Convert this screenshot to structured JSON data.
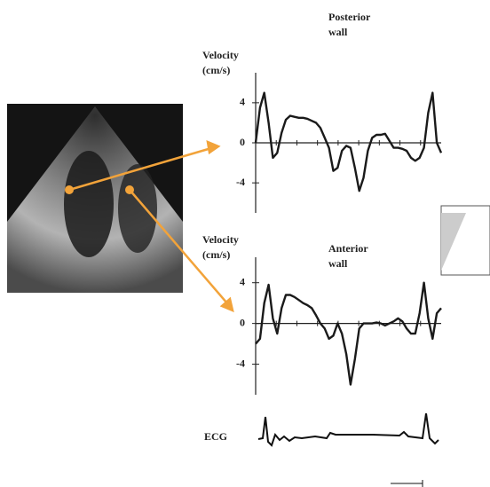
{
  "chart_data": [
    {
      "type": "line",
      "title": [
        "Posterior",
        "wall"
      ],
      "y_label": [
        "Velocity",
        "(cm/s)"
      ],
      "values": [
        0,
        3.5,
        5,
        2,
        -1.5,
        -1,
        1,
        2.3,
        2.7,
        2.6,
        2.5,
        2.5,
        2.4,
        2.2,
        2,
        1.5,
        0.5,
        -0.5,
        -2.8,
        -2.5,
        -0.8,
        -0.3,
        -0.5,
        -2.5,
        -4.8,
        -3.5,
        -0.8,
        0.5,
        0.8,
        0.8,
        0.9,
        0.2,
        -0.5,
        -0.5,
        -0.6,
        -0.8,
        -1.5,
        -1.8,
        -1.5,
        -0.5,
        3,
        5,
        0,
        -1
      ],
      "ylim": [
        -7,
        7
      ],
      "yticks": [
        4,
        0,
        -4
      ],
      "color": "#1a1a1a"
    },
    {
      "type": "line",
      "title": [
        "Anterior",
        "wall"
      ],
      "y_label": [
        "Velocity",
        "(cm/s)"
      ],
      "values": [
        -2,
        -1.5,
        2,
        3.8,
        0.5,
        -1,
        1.5,
        2.8,
        2.8,
        2.6,
        2.3,
        2,
        1.8,
        1.5,
        0.8,
        0,
        -0.5,
        -1.5,
        -1.2,
        0,
        -1,
        -3,
        -6,
        -3.5,
        -0.5,
        0,
        0,
        0,
        0.1,
        0,
        -0.2,
        0,
        0.2,
        0.5,
        0.2,
        -0.5,
        -1,
        -1,
        1,
        4,
        0.5,
        -1.5,
        1,
        1.5
      ],
      "ylim": [
        -7,
        6.5
      ],
      "yticks": [
        4,
        0,
        -4
      ],
      "color": "#1a1a1a"
    }
  ],
  "ecg_label": "ECG"
}
